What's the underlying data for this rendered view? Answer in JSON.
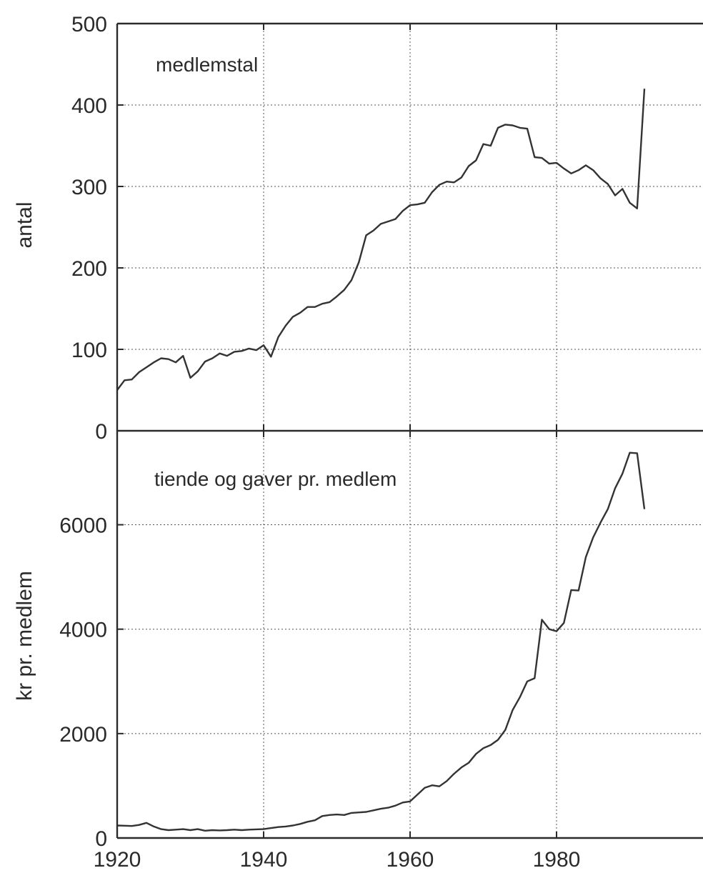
{
  "chart_data": [
    {
      "type": "line",
      "title": "medlemstal",
      "xlabel": "",
      "ylabel": "antal",
      "xlim": [
        1920,
        2000
      ],
      "ylim": [
        0,
        500
      ],
      "x_ticks": [
        1920,
        1940,
        1960,
        1980
      ],
      "x_tick_labels": [],
      "y_ticks": [
        0,
        100,
        200,
        300,
        400,
        500
      ],
      "y_tick_labels": [
        "0",
        "100",
        "200",
        "300",
        "400",
        "500"
      ],
      "grid": true,
      "series": [
        {
          "values": [
            [
              1920,
              50
            ],
            [
              1921,
              62
            ],
            [
              1922,
              63
            ],
            [
              1923,
              72
            ],
            [
              1924,
              78
            ],
            [
              1925,
              84
            ],
            [
              1926,
              89
            ],
            [
              1927,
              88
            ],
            [
              1928,
              84
            ],
            [
              1929,
              92
            ],
            [
              1930,
              65
            ],
            [
              1931,
              73
            ],
            [
              1932,
              85
            ],
            [
              1933,
              89
            ],
            [
              1934,
              95
            ],
            [
              1935,
              92
            ],
            [
              1936,
              97
            ],
            [
              1937,
              98
            ],
            [
              1938,
              101
            ],
            [
              1939,
              99
            ],
            [
              1940,
              105
            ],
            [
              1941,
              91
            ],
            [
              1942,
              115
            ],
            [
              1943,
              129
            ],
            [
              1944,
              140
            ],
            [
              1945,
              145
            ],
            [
              1946,
              152
            ],
            [
              1947,
              152
            ],
            [
              1948,
              156
            ],
            [
              1949,
              158
            ],
            [
              1950,
              165
            ],
            [
              1951,
              173
            ],
            [
              1952,
              185
            ],
            [
              1953,
              207
            ],
            [
              1954,
              240
            ],
            [
              1955,
              246
            ],
            [
              1956,
              254
            ],
            [
              1957,
              257
            ],
            [
              1958,
              260
            ],
            [
              1959,
              270
            ],
            [
              1960,
              277
            ],
            [
              1961,
              278
            ],
            [
              1962,
              280
            ],
            [
              1963,
              293
            ],
            [
              1964,
              302
            ],
            [
              1965,
              306
            ],
            [
              1966,
              305
            ],
            [
              1967,
              311
            ],
            [
              1968,
              325
            ],
            [
              1969,
              332
            ],
            [
              1970,
              352
            ],
            [
              1971,
              350
            ],
            [
              1972,
              372
            ],
            [
              1973,
              376
            ],
            [
              1974,
              375
            ],
            [
              1975,
              372
            ],
            [
              1976,
              371
            ],
            [
              1977,
              336
            ],
            [
              1978,
              335
            ],
            [
              1979,
              328
            ],
            [
              1980,
              329
            ],
            [
              1981,
              322
            ],
            [
              1982,
              316
            ],
            [
              1983,
              320
            ],
            [
              1984,
              326
            ],
            [
              1985,
              320
            ],
            [
              1986,
              310
            ],
            [
              1987,
              303
            ],
            [
              1988,
              289
            ],
            [
              1989,
              297
            ],
            [
              1990,
              280
            ],
            [
              1991,
              273
            ],
            [
              1992,
              420
            ]
          ]
        }
      ]
    },
    {
      "type": "line",
      "title": "tiende og gaver pr. medlem",
      "xlabel": "",
      "ylabel": "kr pr. medlem",
      "xlim": [
        1920,
        2000
      ],
      "ylim": [
        0,
        7800
      ],
      "x_ticks": [
        1920,
        1940,
        1960,
        1980
      ],
      "x_tick_labels": [
        "1920",
        "1940",
        "1960",
        "1980"
      ],
      "y_ticks": [
        0,
        2000,
        4000,
        6000
      ],
      "y_tick_labels": [
        "0",
        "2000",
        "4000",
        "6000"
      ],
      "grid": true,
      "series": [
        {
          "values": [
            [
              1920,
              240
            ],
            [
              1921,
              235
            ],
            [
              1922,
              230
            ],
            [
              1923,
              250
            ],
            [
              1924,
              290
            ],
            [
              1925,
              220
            ],
            [
              1926,
              170
            ],
            [
              1927,
              150
            ],
            [
              1928,
              160
            ],
            [
              1929,
              170
            ],
            [
              1930,
              150
            ],
            [
              1931,
              170
            ],
            [
              1932,
              140
            ],
            [
              1933,
              150
            ],
            [
              1934,
              145
            ],
            [
              1935,
              150
            ],
            [
              1936,
              160
            ],
            [
              1937,
              150
            ],
            [
              1938,
              160
            ],
            [
              1939,
              165
            ],
            [
              1940,
              170
            ],
            [
              1941,
              190
            ],
            [
              1942,
              210
            ],
            [
              1943,
              220
            ],
            [
              1944,
              240
            ],
            [
              1945,
              270
            ],
            [
              1946,
              310
            ],
            [
              1947,
              340
            ],
            [
              1948,
              420
            ],
            [
              1949,
              440
            ],
            [
              1950,
              450
            ],
            [
              1951,
              440
            ],
            [
              1952,
              480
            ],
            [
              1953,
              490
            ],
            [
              1954,
              500
            ],
            [
              1955,
              530
            ],
            [
              1956,
              560
            ],
            [
              1957,
              580
            ],
            [
              1958,
              620
            ],
            [
              1959,
              680
            ],
            [
              1960,
              700
            ],
            [
              1961,
              830
            ],
            [
              1962,
              960
            ],
            [
              1963,
              1010
            ],
            [
              1964,
              990
            ],
            [
              1965,
              1090
            ],
            [
              1966,
              1230
            ],
            [
              1967,
              1350
            ],
            [
              1968,
              1440
            ],
            [
              1969,
              1610
            ],
            [
              1970,
              1720
            ],
            [
              1971,
              1780
            ],
            [
              1972,
              1880
            ],
            [
              1973,
              2070
            ],
            [
              1974,
              2450
            ],
            [
              1975,
              2700
            ],
            [
              1976,
              3000
            ],
            [
              1977,
              3060
            ],
            [
              1978,
              4180
            ],
            [
              1979,
              4000
            ],
            [
              1980,
              3960
            ],
            [
              1981,
              4120
            ],
            [
              1982,
              4750
            ],
            [
              1983,
              4740
            ],
            [
              1984,
              5380
            ],
            [
              1985,
              5760
            ],
            [
              1986,
              6040
            ],
            [
              1987,
              6300
            ],
            [
              1988,
              6700
            ],
            [
              1989,
              6980
            ],
            [
              1990,
              7380
            ],
            [
              1991,
              7370
            ],
            [
              1992,
              6300
            ]
          ]
        }
      ]
    }
  ]
}
